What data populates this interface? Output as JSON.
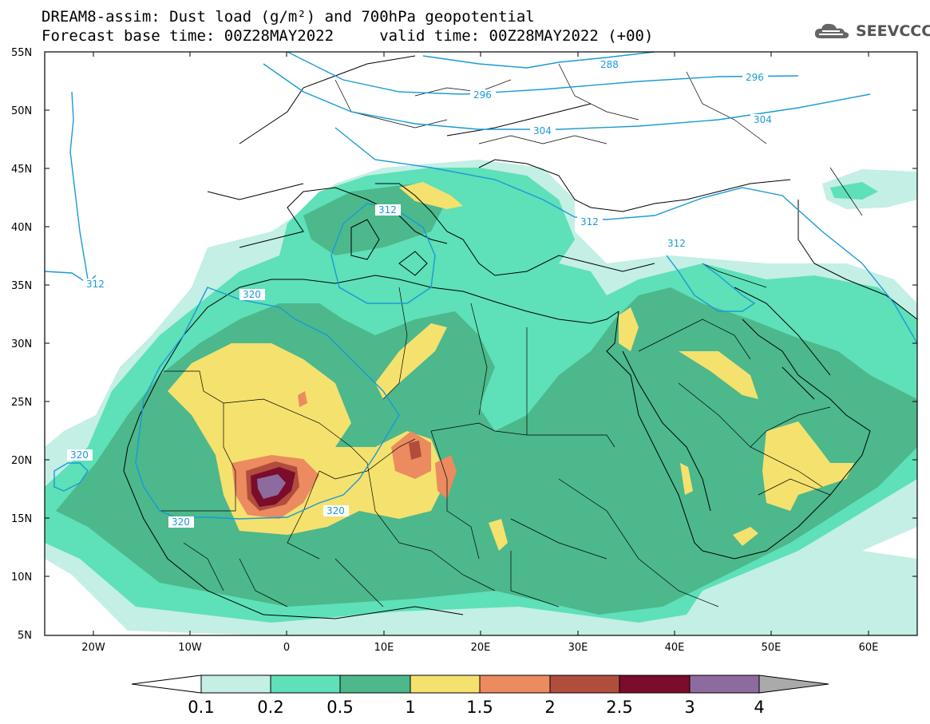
{
  "title_line1": "DREAM8-assim: Dust load (g/m²) and 700hPa geopotential",
  "title_line2": "Forecast base time: 00Z28MAY2022     valid time: 00Z28MAY2022 (+00)",
  "logo_text": "SEEVCCC",
  "map": {
    "lon_range": [
      -25,
      65
    ],
    "lat_range": [
      5,
      55
    ],
    "lat_labels": [
      "55N",
      "50N",
      "45N",
      "40N",
      "35N",
      "30N",
      "25N",
      "20N",
      "15N",
      "10N",
      "5N"
    ],
    "lon_labels": [
      "20W",
      "10W",
      "0",
      "10E",
      "20E",
      "30E",
      "40E",
      "50E",
      "60E"
    ]
  },
  "geopotential_labels": [
    "288",
    "296",
    "296",
    "304",
    "304",
    "312",
    "312",
    "312",
    "312",
    "320",
    "320",
    "320",
    "320"
  ],
  "colorbar": {
    "labels": [
      "0.1",
      "0.2",
      "0.5",
      "1",
      "1.5",
      "2",
      "2.5",
      "3",
      "4"
    ],
    "colors": [
      "#c3efe5",
      "#5ee0b8",
      "#4cb88c",
      "#f5e16e",
      "#eb8b5f",
      "#b14d3d",
      "#7b0c2b",
      "#8e6b9e"
    ],
    "under_color": "#ffffff",
    "over_color": "#aaaaaa"
  }
}
